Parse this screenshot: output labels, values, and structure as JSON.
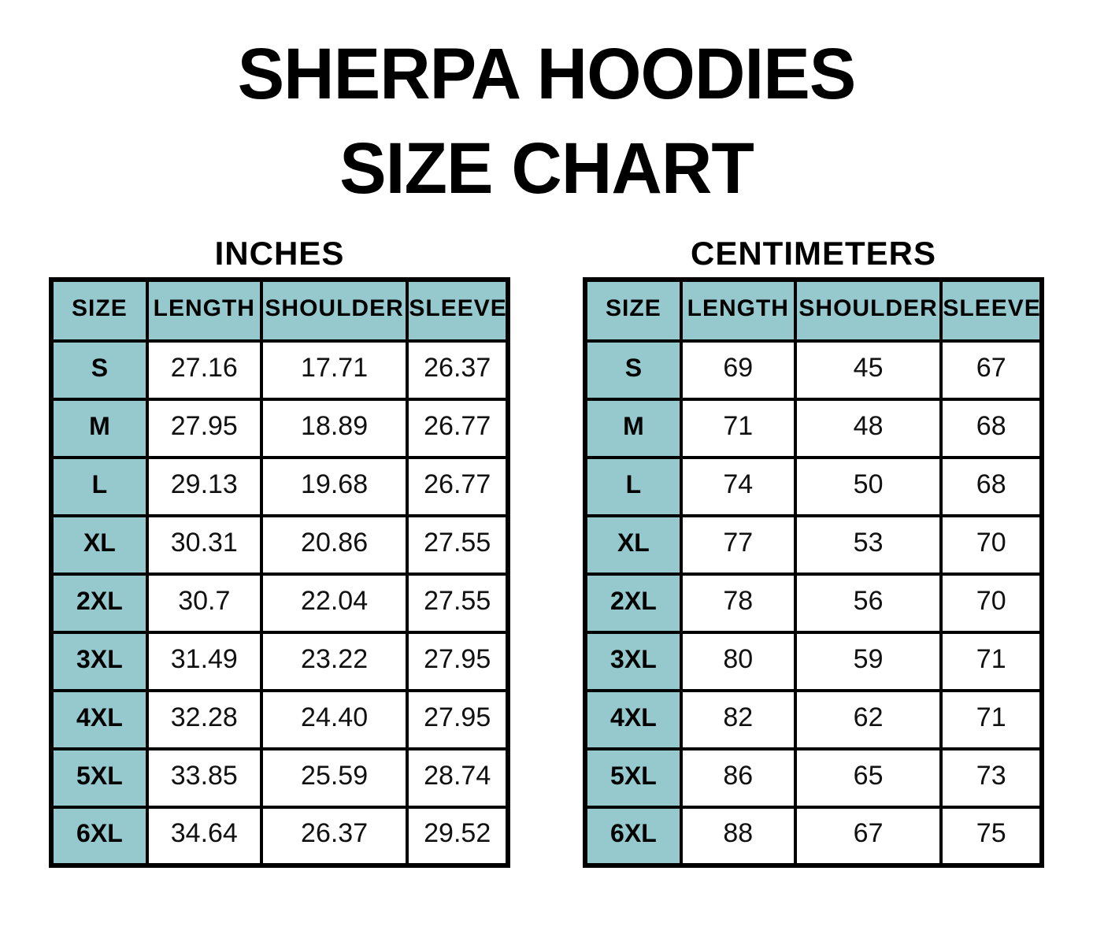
{
  "page": {
    "title_line1": "SHERPA HOODIES",
    "title_line2": "SIZE CHART",
    "colors": {
      "header_teal": "#95C9CE",
      "grid_border": "#000000",
      "background": "#FFFFFF",
      "text": "#000000"
    }
  },
  "chart_data": [
    {
      "type": "table",
      "title": "INCHES",
      "columns": [
        "SIZE",
        "LENGTH",
        "SHOULDER",
        "SLEEVE"
      ],
      "rows": [
        [
          "S",
          "27.16",
          "17.71",
          "26.37"
        ],
        [
          "M",
          "27.95",
          "18.89",
          "26.77"
        ],
        [
          "L",
          "29.13",
          "19.68",
          "26.77"
        ],
        [
          "XL",
          "30.31",
          "20.86",
          "27.55"
        ],
        [
          "2XL",
          "30.7",
          "22.04",
          "27.55"
        ],
        [
          "3XL",
          "31.49",
          "23.22",
          "27.95"
        ],
        [
          "4XL",
          "32.28",
          "24.40",
          "27.95"
        ],
        [
          "5XL",
          "33.85",
          "25.59",
          "28.74"
        ],
        [
          "6XL",
          "34.64",
          "26.37",
          "29.52"
        ]
      ]
    },
    {
      "type": "table",
      "title": "CENTIMETERS",
      "columns": [
        "SIZE",
        "LENGTH",
        "SHOULDER",
        "SLEEVE"
      ],
      "rows": [
        [
          "S",
          "69",
          "45",
          "67"
        ],
        [
          "M",
          "71",
          "48",
          "68"
        ],
        [
          "L",
          "74",
          "50",
          "68"
        ],
        [
          "XL",
          "77",
          "53",
          "70"
        ],
        [
          "2XL",
          "78",
          "56",
          "70"
        ],
        [
          "3XL",
          "80",
          "59",
          "71"
        ],
        [
          "4XL",
          "82",
          "62",
          "71"
        ],
        [
          "5XL",
          "86",
          "65",
          "73"
        ],
        [
          "6XL",
          "88",
          "67",
          "75"
        ]
      ]
    }
  ]
}
